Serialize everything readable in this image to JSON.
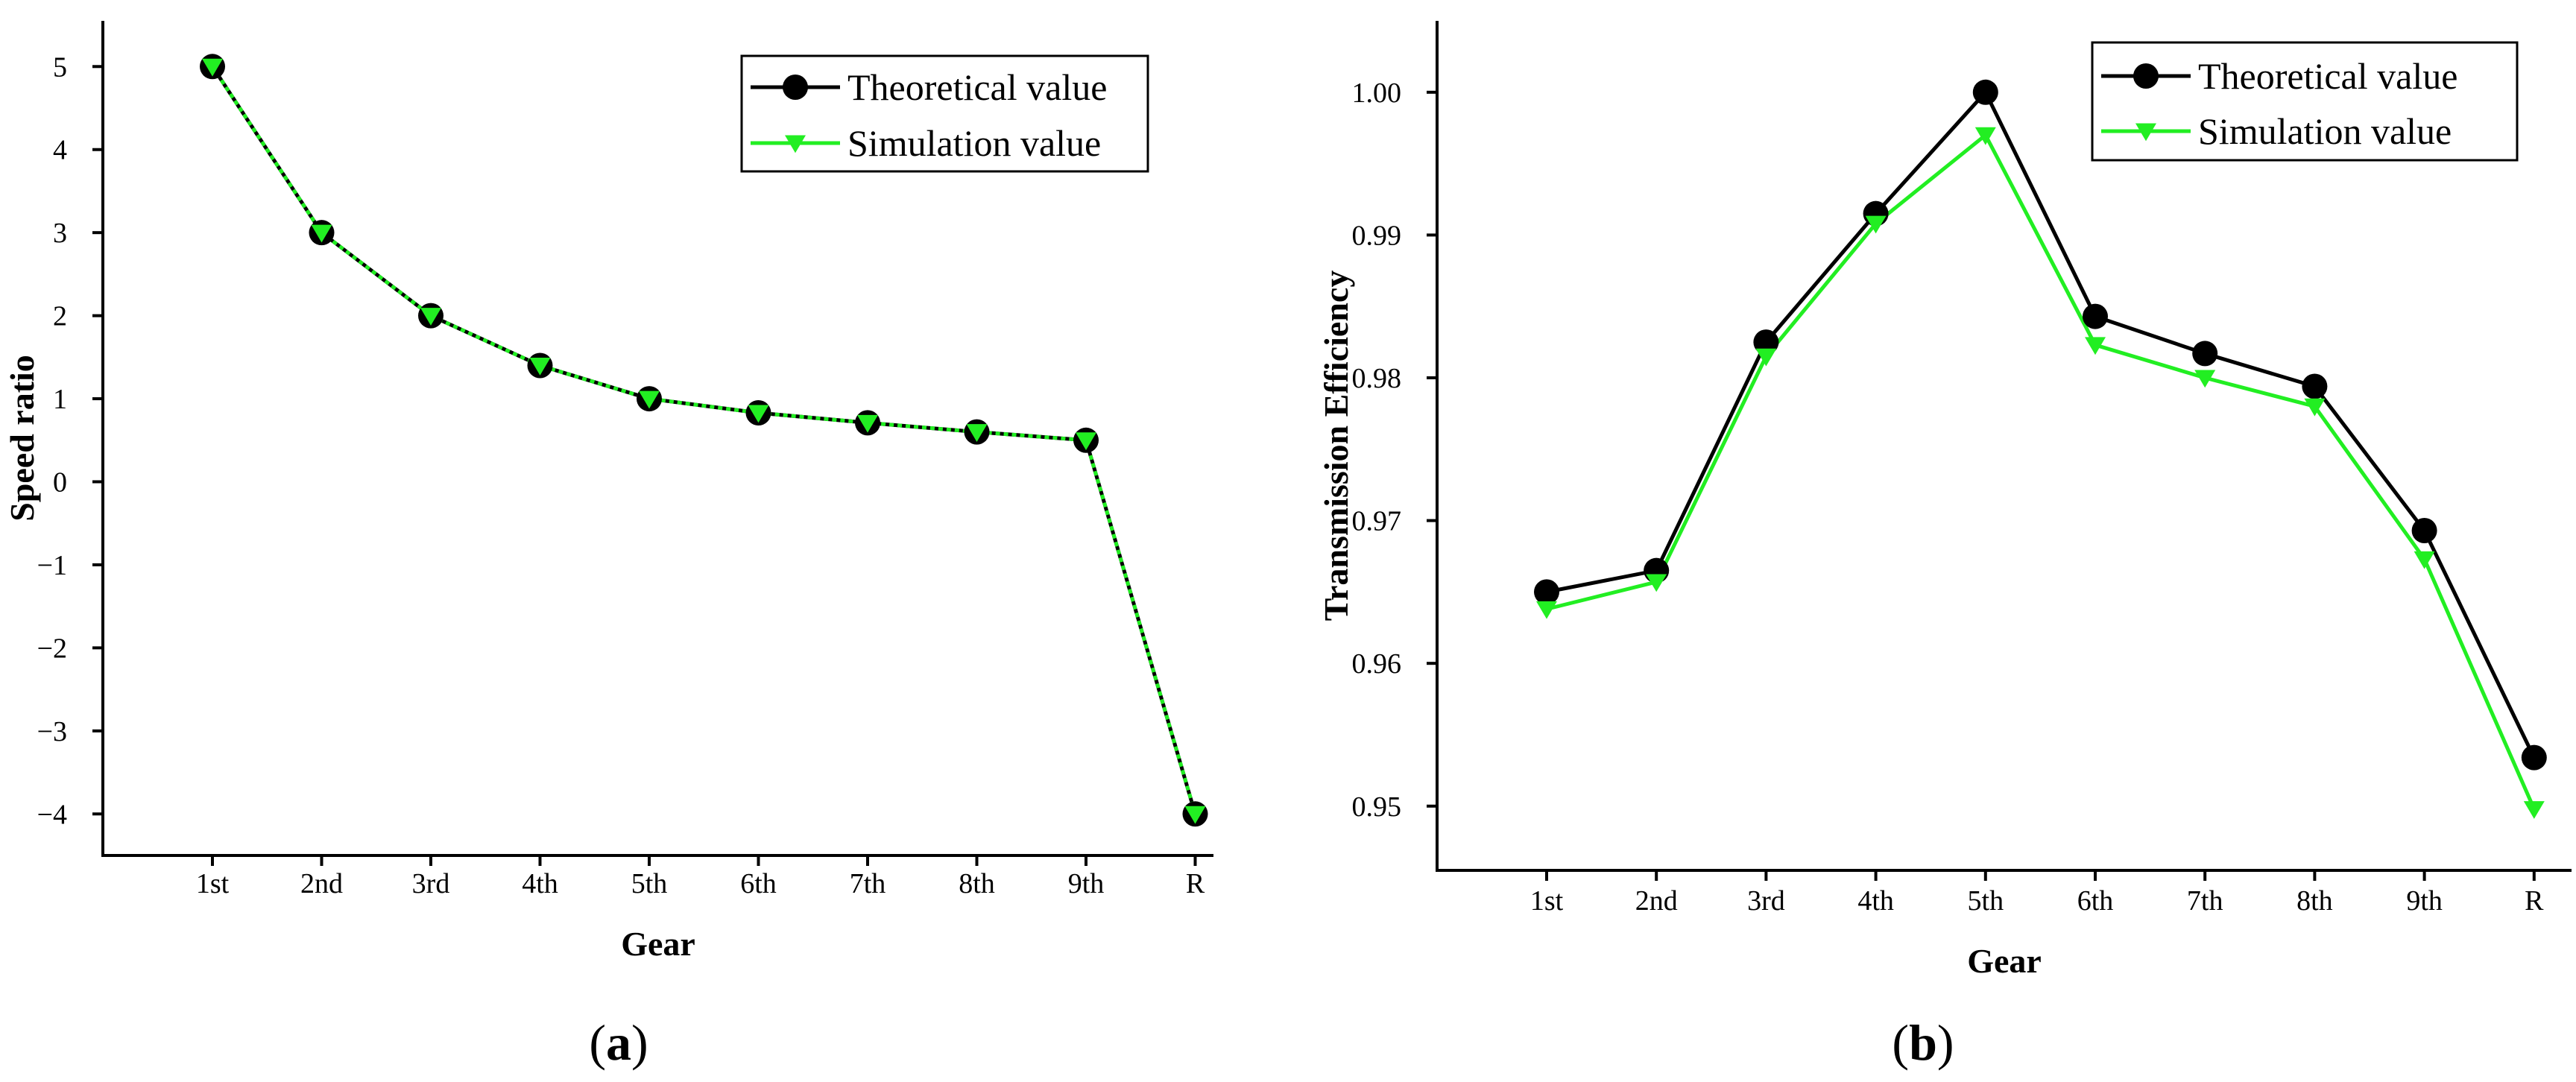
{
  "colors": {
    "theoretical": "#000000",
    "simulation": "#22ee22",
    "axis": "#000000",
    "background": "#ffffff"
  },
  "chart_data": [
    {
      "type": "line",
      "panel_label": "a",
      "title": "",
      "xlabel": "Gear",
      "ylabel": "Speed ratio",
      "categories": [
        "1st",
        "2nd",
        "3rd",
        "4th",
        "5th",
        "6th",
        "7th",
        "8th",
        "9th",
        "R"
      ],
      "ylim": [
        -4.5,
        5.55
      ],
      "yticks": [
        5,
        4,
        3,
        2,
        1,
        0,
        -1,
        -2,
        -3,
        -4
      ],
      "ytick_labels": [
        "5",
        "4",
        "3",
        "2",
        "1",
        "0",
        "−1",
        "−2",
        "−3",
        "−4"
      ],
      "grid": false,
      "legend_position": "top-right",
      "series": [
        {
          "name": "Theoretical value",
          "marker": "circle",
          "values": [
            5.0,
            3.0,
            2.0,
            1.4,
            1.0,
            0.83,
            0.71,
            0.6,
            0.5,
            -4.0
          ]
        },
        {
          "name": "Simulation value",
          "marker": "triangle-down",
          "values": [
            5.0,
            3.0,
            2.0,
            1.4,
            1.0,
            0.83,
            0.71,
            0.6,
            0.5,
            -4.0
          ]
        }
      ]
    },
    {
      "type": "line",
      "panel_label": "b",
      "title": "",
      "xlabel": "Gear",
      "ylabel": "Transmission Efficiency",
      "categories": [
        "1st",
        "2nd",
        "3rd",
        "4th",
        "5th",
        "6th",
        "7th",
        "8th",
        "9th",
        "R"
      ],
      "ylim": [
        0.9455,
        1.005
      ],
      "yticks": [
        1.0,
        0.99,
        0.98,
        0.97,
        0.96,
        0.95
      ],
      "ytick_labels": [
        "1.00",
        "0.99",
        "0.98",
        "0.97",
        "0.96",
        "0.95"
      ],
      "grid": false,
      "legend_position": "top-right",
      "series": [
        {
          "name": "Theoretical value",
          "marker": "circle",
          "values": [
            0.965,
            0.9665,
            0.9825,
            0.9915,
            1.0,
            0.9843,
            0.9817,
            0.9794,
            0.9693,
            0.9534
          ]
        },
        {
          "name": "Simulation value",
          "marker": "triangle-down",
          "values": [
            0.9638,
            0.9657,
            0.9815,
            0.9908,
            0.997,
            0.9823,
            0.98,
            0.978,
            0.9673,
            0.9498
          ]
        }
      ]
    }
  ]
}
